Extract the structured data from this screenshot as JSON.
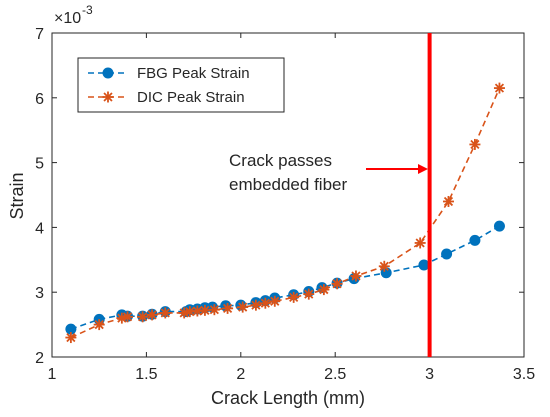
{
  "chart_data": {
    "type": "line",
    "xlabel": "Crack Length (mm)",
    "ylabel": "Strain",
    "exponent_label": "×10",
    "exponent_value": "-3",
    "xlim": [
      1,
      3.5
    ],
    "ylim": [
      2,
      7
    ],
    "xticks": [
      1,
      1.5,
      2,
      2.5,
      3,
      3.5
    ],
    "yticks": [
      2,
      3,
      4,
      5,
      6,
      7
    ],
    "grid": false,
    "legend_position": "top-left",
    "series": [
      {
        "name": "FBG Peak Strain",
        "color": "#0072BD",
        "marker": "circle",
        "linestyle": "dashed",
        "x": [
          1.1,
          1.25,
          1.37,
          1.4,
          1.48,
          1.53,
          1.6,
          1.71,
          1.73,
          1.77,
          1.81,
          1.85,
          1.92,
          2.0,
          2.08,
          2.13,
          2.18,
          2.28,
          2.36,
          2.43,
          2.51,
          2.6,
          2.77,
          2.97,
          3.09,
          3.24,
          3.37
        ],
        "y": [
          2.43,
          2.58,
          2.65,
          2.63,
          2.63,
          2.66,
          2.7,
          2.7,
          2.73,
          2.74,
          2.76,
          2.77,
          2.79,
          2.8,
          2.84,
          2.87,
          2.91,
          2.96,
          3.01,
          3.07,
          3.14,
          3.21,
          3.3,
          3.42,
          3.59,
          3.8,
          4.02
        ]
      },
      {
        "name": "DIC Peak Strain",
        "color": "#D95319",
        "marker": "asterisk",
        "linestyle": "dashed",
        "x": [
          1.1,
          1.25,
          1.37,
          1.4,
          1.48,
          1.53,
          1.6,
          1.7,
          1.73,
          1.77,
          1.81,
          1.86,
          1.93,
          2.01,
          2.08,
          2.13,
          2.18,
          2.28,
          2.36,
          2.44,
          2.51,
          2.61,
          2.76,
          2.95,
          3.1,
          3.24,
          3.37
        ],
        "y": [
          2.3,
          2.5,
          2.6,
          2.62,
          2.62,
          2.65,
          2.68,
          2.68,
          2.7,
          2.71,
          2.72,
          2.73,
          2.75,
          2.77,
          2.8,
          2.83,
          2.86,
          2.92,
          2.97,
          3.04,
          3.13,
          3.25,
          3.4,
          3.76,
          4.4,
          5.28,
          6.15
        ]
      }
    ],
    "reference_line": {
      "x": 3.0,
      "color": "#FF0000"
    },
    "annotation": {
      "line1": "Crack passes",
      "line2": "embedded fiber",
      "arrow_color": "#FF0000"
    }
  }
}
